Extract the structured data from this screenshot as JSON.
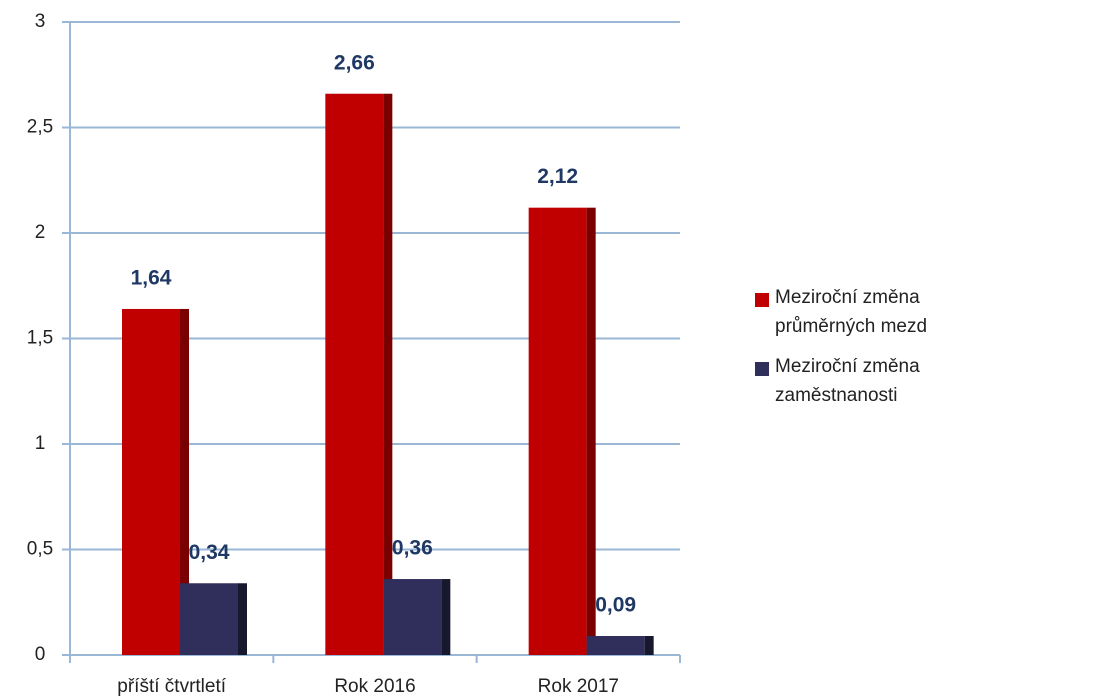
{
  "chart_data": {
    "type": "bar",
    "categories": [
      "příští čtvrtletí",
      "Rok 2016",
      "Rok 2017"
    ],
    "series": [
      {
        "name": "Meziroční změna průměrných mezd",
        "color": "#c00000",
        "edge_color": "#7a0000",
        "values": [
          1.64,
          2.66,
          2.12
        ],
        "value_labels": [
          "1,64",
          "2,66",
          "2,12"
        ]
      },
      {
        "name": "Meziroční změna zaměstnanosti",
        "color": "#302f5c",
        "edge_color": "#17172e",
        "values": [
          0.34,
          0.36,
          0.09
        ],
        "value_labels": [
          "0,34",
          "0,36",
          "0,09"
        ]
      }
    ],
    "ylim": [
      0,
      3
    ],
    "yticks": [
      0,
      {
        "value": 0.5,
        "label": "0,5"
      },
      1,
      {
        "value": 1.5,
        "label": "1,5"
      },
      2,
      {
        "value": 2.5,
        "label": "2,5"
      },
      3
    ],
    "grid": true,
    "legend": "right",
    "value_label_color": "#1f3864"
  }
}
